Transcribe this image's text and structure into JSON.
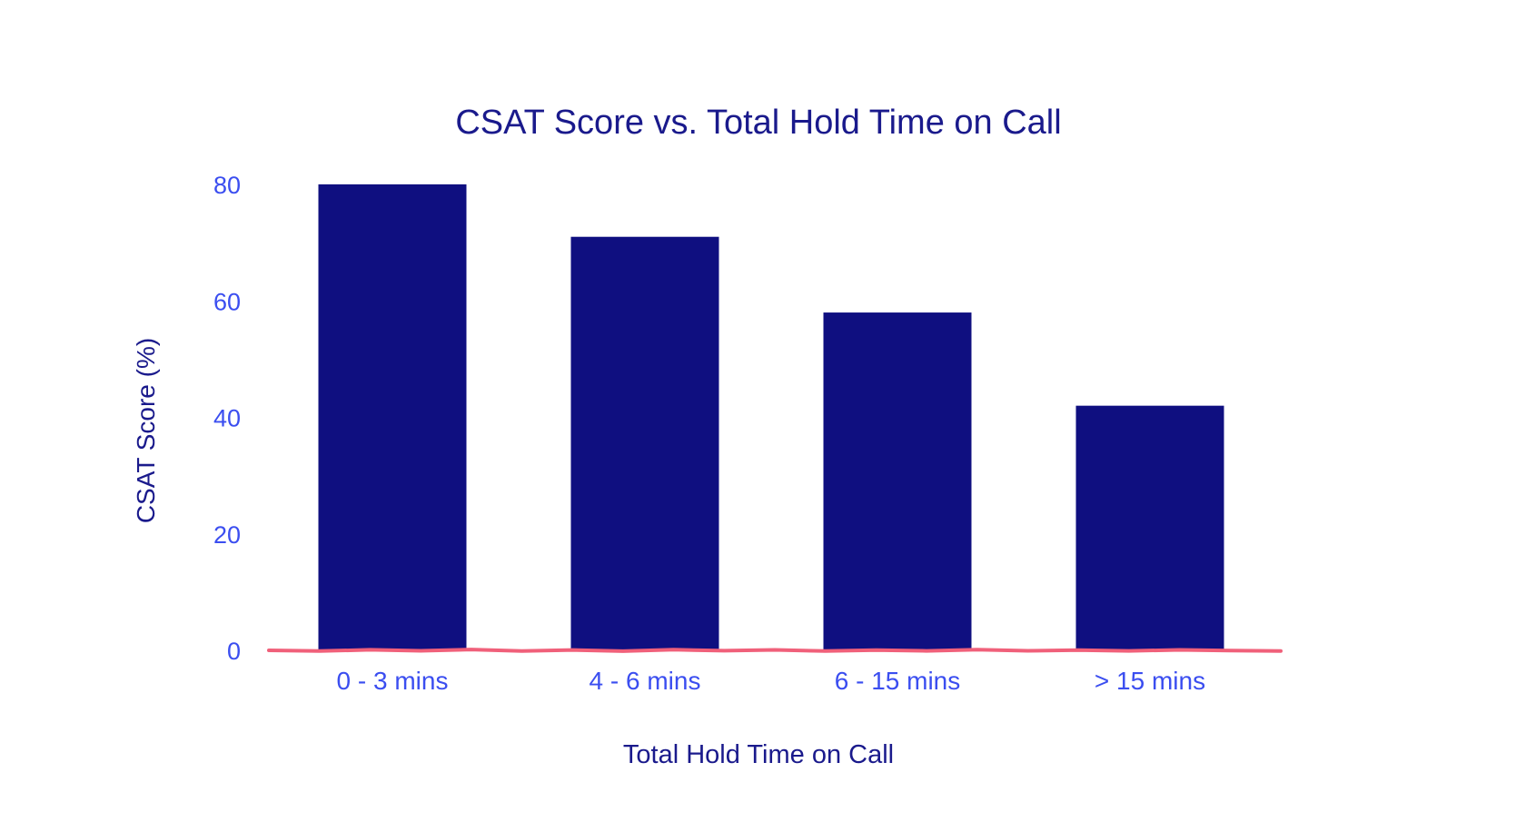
{
  "chart_data": {
    "type": "bar",
    "title": "CSAT Score vs. Total Hold Time on Call",
    "xlabel": "Total Hold Time on Call",
    "ylabel": "CSAT Score (%)",
    "categories": [
      "0 - 3 mins",
      "4 - 6 mins",
      "6 - 15 mins",
      "> 15 mins"
    ],
    "values": [
      80,
      71,
      58,
      42
    ],
    "ylim": [
      0,
      80
    ],
    "yticks": [
      0,
      20,
      40,
      60,
      80
    ],
    "grid": false,
    "legend": "none"
  },
  "colors": {
    "bar": "#0f0f80",
    "title": "#1a1a8c",
    "axis_label": "#1a1a8c",
    "tick_label": "#3b4ef0",
    "baseline": "#f0607a",
    "background": "#ffffff"
  }
}
